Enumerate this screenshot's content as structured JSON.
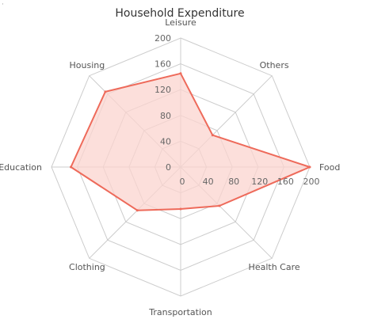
{
  "chart_data": {
    "type": "radar",
    "title": "Household Expenditure",
    "categories": [
      "Leisure",
      "Others",
      "Food",
      "Health Care",
      "Transportation",
      "Clothing",
      "Education",
      "Housing"
    ],
    "series": [
      {
        "values": [
          145,
          70,
          200,
          85,
          65,
          95,
          170,
          165
        ]
      }
    ],
    "rlim": [
      0,
      200
    ],
    "ticks": [
      0,
      40,
      80,
      120,
      160,
      200
    ],
    "vertical_ticks": [
      "0",
      "40",
      "80",
      "120",
      "160",
      "200"
    ],
    "horizontal_ticks": [
      "0",
      "40",
      "80",
      "120",
      "160",
      "200"
    ],
    "grid": true,
    "colors": {
      "line": "#ee6a5a",
      "fill": "#fbd4cf",
      "grid": "#cccccc"
    }
  },
  "corner_mark": "·"
}
